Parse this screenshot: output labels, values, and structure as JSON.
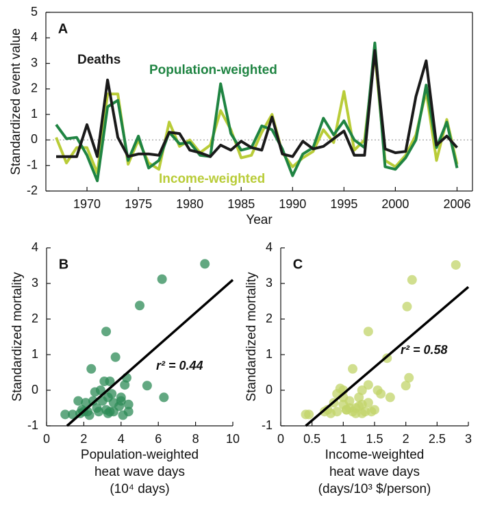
{
  "chart_data": [
    {
      "type": "line",
      "panel_label": "A",
      "ylabel": "Standardized event value",
      "xlabel": "Year",
      "x": [
        1967,
        1968,
        1969,
        1970,
        1971,
        1972,
        1973,
        1974,
        1975,
        1976,
        1977,
        1978,
        1979,
        1980,
        1981,
        1982,
        1983,
        1984,
        1985,
        1986,
        1987,
        1988,
        1989,
        1990,
        1991,
        1992,
        1993,
        1994,
        1995,
        1996,
        1997,
        1998,
        1999,
        2000,
        2001,
        2002,
        2003,
        2004,
        2005,
        2006
      ],
      "series": [
        {
          "name": "Income-weighted",
          "color": "#b9cc38",
          "values": [
            0.1,
            -0.9,
            -0.3,
            -0.3,
            -1.3,
            1.8,
            1.8,
            -0.95,
            0,
            -0.9,
            -1.15,
            0.7,
            -0.25,
            0,
            -0.5,
            -0.2,
            1.15,
            0.4,
            -0.7,
            -0.6,
            0.3,
            1.0,
            -0.5,
            -1.05,
            -0.7,
            -0.45,
            0.4,
            -0.1,
            1.9,
            -0.4,
            0,
            3.4,
            -0.8,
            -1.05,
            -0.6,
            0.2,
            1.9,
            -0.8,
            0.8,
            -0.95
          ]
        },
        {
          "name": "Population-weighted",
          "color": "#1f8442",
          "values": [
            0.6,
            0.05,
            0.1,
            -0.6,
            -1.6,
            1.3,
            1.55,
            -0.8,
            0.15,
            -1.1,
            -0.8,
            0.3,
            -0.15,
            -0.1,
            -0.6,
            -0.65,
            2.2,
            0.25,
            -0.4,
            -0.3,
            0.55,
            0.4,
            -0.35,
            -1.4,
            -0.55,
            -0.3,
            0.85,
            0.2,
            0.75,
            0,
            -0.3,
            3.8,
            -1.05,
            -1.15,
            -0.7,
            0,
            2.15,
            -0.3,
            0.7,
            -1.1
          ]
        },
        {
          "name": "Deaths",
          "color": "#1a1a1a",
          "values": [
            -0.65,
            -0.65,
            -0.65,
            0.6,
            -0.65,
            2.35,
            0.1,
            -0.65,
            -0.55,
            -0.55,
            -0.6,
            0.3,
            0.25,
            -0.4,
            -0.5,
            -0.65,
            -0.2,
            -0.4,
            -0.05,
            -0.3,
            -0.4,
            0.9,
            -0.55,
            -0.65,
            -0.05,
            -0.35,
            -0.25,
            0.05,
            0.35,
            -0.6,
            -0.6,
            3.5,
            -0.35,
            -0.5,
            -0.45,
            1.7,
            3.1,
            -0.2,
            0.15,
            -0.3
          ]
        }
      ],
      "xlim": [
        1966,
        2007.5
      ],
      "xticks": [
        1970,
        1975,
        1980,
        1985,
        1990,
        1995,
        2000,
        2006
      ],
      "ylim": [
        -2,
        5
      ],
      "yticks": [
        -2,
        -1,
        0,
        1,
        2,
        3,
        4,
        5
      ],
      "box": true,
      "zero_line": true
    },
    {
      "type": "scatter",
      "panel_label": "B",
      "ylabel": "Standardized mortality",
      "xlabel": [
        "Population-weighted",
        "heat wave days",
        "(10⁴ days)"
      ],
      "color": "#2e8b57",
      "points": {
        "x": [
          1.0,
          1.4,
          1.7,
          1.9,
          2.1,
          2.2,
          2.3,
          2.4,
          2.6,
          2.7,
          2.8,
          2.9,
          3.0,
          3.1,
          3.2,
          3.2,
          3.3,
          3.4,
          3.4,
          3.5,
          3.6,
          3.6,
          3.7,
          3.9,
          4.0,
          4.1,
          4.2,
          4.3,
          4.4,
          5.0,
          5.4,
          6.2,
          6.3,
          8.5,
          4.0,
          2.0,
          3.3,
          1.8,
          4.4,
          2.5
        ],
        "y": [
          -0.68,
          -0.68,
          -0.3,
          -0.55,
          -0.35,
          -0.6,
          -0.7,
          0.6,
          -0.05,
          -0.5,
          -0.6,
          0,
          -0.3,
          0.25,
          1.65,
          -0.55,
          -0.65,
          -0.6,
          0.25,
          -0.1,
          -0.6,
          -0.35,
          0.93,
          -0.45,
          -0.3,
          -0.7,
          0.15,
          0.35,
          -0.6,
          2.38,
          0.13,
          3.12,
          -0.2,
          3.55,
          -0.2,
          -0.6,
          -0.2,
          -0.65,
          -0.4,
          -0.3
        ]
      },
      "fit": {
        "x": [
          1.1,
          10
        ],
        "y": [
          -1,
          3.1
        ]
      },
      "annotation": "r² = 0.44",
      "xlim": [
        0,
        10
      ],
      "xticks": [
        0,
        2,
        4,
        6,
        8,
        10
      ],
      "ylim": [
        -1,
        4
      ],
      "yticks": [
        -1,
        0,
        1,
        2,
        3,
        4
      ]
    },
    {
      "type": "scatter",
      "panel_label": "C",
      "ylabel": "Standardized mortality",
      "xlabel": [
        "Income-weighted",
        "heat wave days",
        "(days/10³ $/person)"
      ],
      "color": "#c2d46a",
      "points": {
        "x": [
          0.4,
          0.45,
          0.7,
          0.75,
          0.8,
          0.85,
          0.9,
          0.95,
          1.0,
          1.0,
          1.05,
          1.1,
          1.15,
          1.15,
          1.2,
          1.2,
          1.25,
          1.3,
          1.3,
          1.35,
          1.4,
          1.4,
          1.45,
          1.5,
          1.55,
          1.6,
          1.7,
          1.75,
          2.0,
          2.02,
          2.05,
          2.1,
          2.8,
          0.9,
          1.1,
          1.0,
          1.25,
          1.4,
          1.05,
          1.3
        ],
        "y": [
          -0.68,
          -0.68,
          -0.6,
          -0.55,
          -0.65,
          -0.35,
          -0.1,
          0.05,
          0,
          -0.4,
          -0.55,
          -0.3,
          0.6,
          -0.6,
          -0.65,
          -0.5,
          -0.2,
          -0.4,
          -0.65,
          -0.6,
          1.65,
          -0.35,
          -0.6,
          -0.55,
          0,
          -0.1,
          0.9,
          -0.2,
          0.13,
          2.35,
          0.35,
          3.1,
          3.52,
          -0.6,
          -0.5,
          -0.2,
          -0.45,
          0.15,
          -0.55,
          0
        ]
      },
      "fit": {
        "x": [
          0.4,
          3
        ],
        "y": [
          -1,
          2.9
        ]
      },
      "annotation": "r² = 0.58",
      "xlim": [
        0,
        3
      ],
      "xticks": [
        0,
        0.5,
        1,
        1.5,
        2,
        2.5,
        3
      ],
      "ylim": [
        -1,
        4
      ],
      "yticks": [
        -1,
        0,
        1,
        2,
        3,
        4
      ]
    }
  ]
}
